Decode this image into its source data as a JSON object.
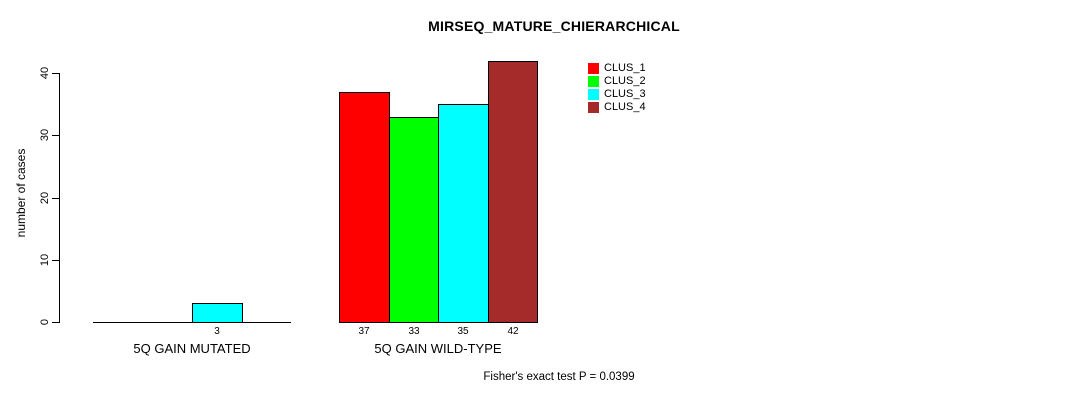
{
  "chart_data": {
    "type": "bar",
    "title": "MIRSEQ_MATURE_CHIERARCHICAL",
    "ylabel": "number of cases",
    "ylim": [
      0,
      40
    ],
    "yticks": [
      0,
      10,
      20,
      30,
      40
    ],
    "grid": false,
    "legend_position": "top-right-of-plot",
    "categories": [
      "5Q GAIN MUTATED",
      "5Q GAIN WILD-TYPE"
    ],
    "series": [
      {
        "name": "CLUS_1",
        "color": "#ff0000",
        "values": [
          0,
          37
        ]
      },
      {
        "name": "CLUS_2",
        "color": "#00ff00",
        "values": [
          0,
          33
        ]
      },
      {
        "name": "CLUS_3",
        "color": "#00ffff",
        "values": [
          3,
          35
        ]
      },
      {
        "name": "CLUS_4",
        "color": "#a52a2a",
        "values": [
          0,
          42
        ]
      }
    ],
    "bar_value_labels_shown": [
      "3",
      "37",
      "33",
      "35",
      "42"
    ],
    "annotation": "Fisher's exact test P = 0.0399"
  }
}
